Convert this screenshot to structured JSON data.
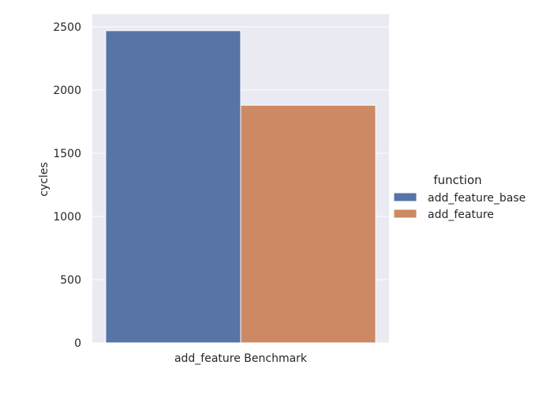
{
  "chart_data": {
    "type": "bar",
    "title": "",
    "categories": [
      "add_feature Benchmark"
    ],
    "series": [
      {
        "name": "add_feature_base",
        "values": [
          2470
        ],
        "color": "#5874a6"
      },
      {
        "name": "add_feature",
        "values": [
          1880
        ],
        "color": "#cc8963"
      }
    ],
    "xlabel": "add_feature Benchmark",
    "ylabel": "cycles",
    "ylim": [
      0,
      2600
    ],
    "yticks": [
      "0",
      "500",
      "1000",
      "1500",
      "2000",
      "2500"
    ],
    "grid": true,
    "legend": {
      "title": "function",
      "placement": "right"
    },
    "colors": {
      "background": "#eaeaf2",
      "grid": "#ffffff"
    }
  }
}
